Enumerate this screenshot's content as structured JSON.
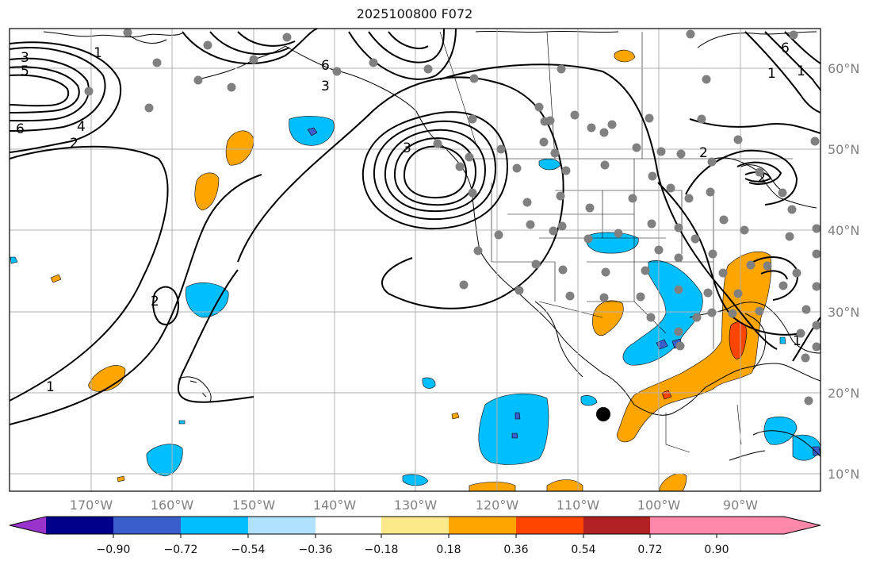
{
  "title": "2025100800 F072",
  "longitude_labels": [
    "170°W",
    "160°W",
    "150°W",
    "140°W",
    "130°W",
    "120°W",
    "110°W",
    "100°W",
    "90°W"
  ],
  "latitude_labels": [
    "60°N",
    "50°N",
    "40°N",
    "30°N",
    "20°N",
    "10°N"
  ],
  "contour_labels": [
    "3",
    "5",
    "6",
    "4",
    "2",
    "1",
    "3",
    "6",
    "2",
    "1",
    "2",
    "1",
    "1",
    "6",
    "1",
    "2",
    "3"
  ],
  "colorbar": {
    "colors": [
      "#9933cc",
      "#00008b",
      "#3a5fcd",
      "#00bfff",
      "#b0e2ff",
      "#ffffff",
      "#fce98a",
      "#ffa500",
      "#ff4500",
      "#b22222",
      "#ff88aa"
    ],
    "tick_labels": [
      "−0.90",
      "−0.72",
      "−0.54",
      "−0.36",
      "−0.18",
      "0.18",
      "0.36",
      "0.54",
      "0.72",
      "0.90"
    ]
  },
  "colors": {
    "grid": "#b0b0b0",
    "land_outline": "#000000",
    "station_dot": "#808080",
    "contour": "#000000",
    "marker": "#000000"
  }
}
